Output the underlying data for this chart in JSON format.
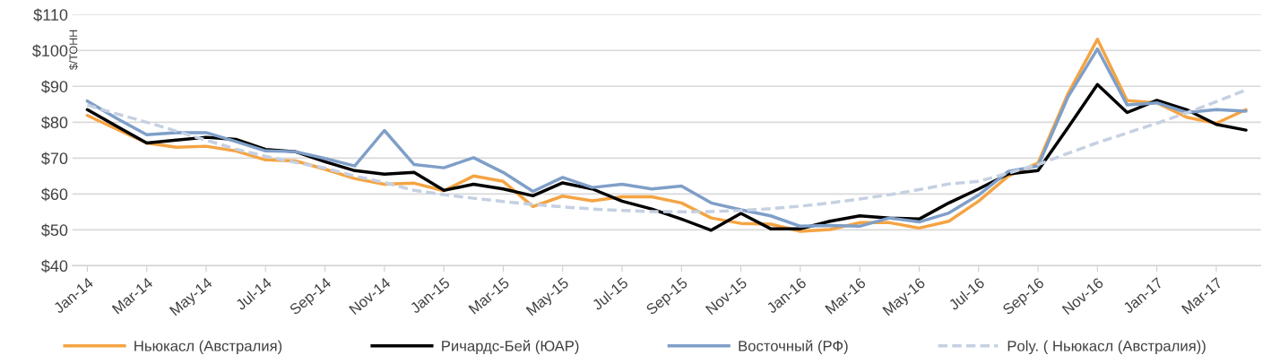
{
  "chart_data": {
    "type": "line",
    "ylabel": "$/ТОНН",
    "categories": [
      "Jan-14",
      null,
      "Mar-14",
      null,
      "May-14",
      null,
      "Jul-14",
      null,
      "Sep-14",
      null,
      "Nov-14",
      null,
      "Jan-15",
      null,
      "Mar-15",
      null,
      "May-15",
      null,
      "Jul-15",
      null,
      "Sep-15",
      null,
      "Nov-15",
      null,
      "Jan-16",
      null,
      "Mar-16",
      null,
      "May-16",
      null,
      "Jul-16",
      null,
      "Sep-16",
      null,
      "Nov-16",
      null,
      "Jan-17",
      null,
      "Mar-17",
      null
    ],
    "series": [
      {
        "name": "Ньюкасл (Австралия)",
        "color": "#f4a443",
        "line_style": "solid",
        "values": [
          81.9,
          78,
          74.2,
          73,
          73.3,
          72,
          69.5,
          69.2,
          66.9,
          64.3,
          62.7,
          63,
          60.9,
          65,
          63.5,
          56.5,
          59.4,
          58.1,
          59.2,
          59.2,
          57.5,
          53.3,
          51.8,
          51.6,
          49.6,
          50.1,
          52,
          52,
          50.5,
          52.4,
          58,
          65,
          68.6,
          87.8,
          103.1,
          86,
          85.4,
          81.4,
          79.7,
          83.5
        ]
      },
      {
        "name": "Ричардс-Бей (ЮАР)",
        "color": "#000000",
        "line_style": "solid",
        "values": [
          83.5,
          78.8,
          74.2,
          75,
          75.8,
          75.2,
          72.4,
          71.8,
          69,
          66.5,
          65.5,
          66,
          61,
          62.7,
          61.4,
          59.5,
          63.1,
          61.4,
          58,
          55.8,
          53,
          49.9,
          54.6,
          50.3,
          50.3,
          52.4,
          53.9,
          53.3,
          53,
          57.5,
          61.4,
          65.6,
          66.5,
          78.4,
          90.5,
          82.7,
          86.1,
          83.5,
          79.4,
          77.8
        ]
      },
      {
        "name": "Восточный (РФ)",
        "color": "#7f9fc8",
        "line_style": "solid",
        "values": [
          85.9,
          81,
          76.5,
          77.1,
          77.1,
          74.6,
          72,
          71.8,
          69.9,
          67.8,
          77.7,
          68.2,
          67.3,
          70.1,
          66,
          60.7,
          64.6,
          61.8,
          62.7,
          61.4,
          62.2,
          57.5,
          55.6,
          53.9,
          51,
          51.2,
          51,
          53.3,
          52.2,
          54.7,
          59.7,
          66.3,
          67.8,
          86.9,
          100.4,
          84.8,
          85.4,
          82.7,
          83.5,
          83.1
        ]
      },
      {
        "name": "Poly. ( Ньюкасл (Австралия))",
        "color": "#c5d0e2",
        "line_style": "dashed",
        "values": [
          84.8,
          82.3,
          80,
          77.5,
          75,
          72.5,
          70.5,
          68.8,
          67.2,
          65,
          63.2,
          61,
          59.8,
          58.8,
          57.9,
          57.1,
          56.4,
          55.8,
          55.4,
          55.1,
          55,
          55.1,
          55.4,
          55.9,
          56.6,
          57.5,
          58.6,
          59.8,
          61.2,
          62.8,
          63.5,
          65.8,
          68.2,
          71.3,
          74.3,
          77,
          79.7,
          82.6,
          85.7,
          89
        ]
      }
    ],
    "ylim": [
      40,
      110
    ],
    "yticks": [
      {
        "value": 40,
        "label": "$40"
      },
      {
        "value": 50,
        "label": "$50"
      },
      {
        "value": 60,
        "label": "$60"
      },
      {
        "value": 70,
        "label": "$70"
      },
      {
        "value": 80,
        "label": "$80"
      },
      {
        "value": 90,
        "label": "$90"
      },
      {
        "value": 100,
        "label": "$100"
      },
      {
        "value": 110,
        "label": "$110"
      }
    ],
    "grid": "y",
    "legend": "bottom",
    "marker": "none"
  }
}
